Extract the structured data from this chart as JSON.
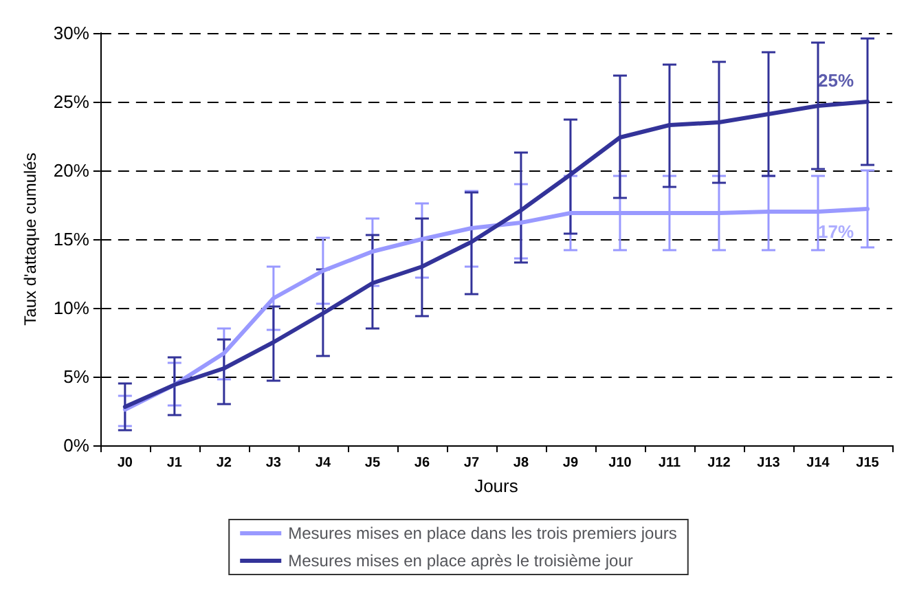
{
  "chart_data": {
    "type": "line",
    "xlabel": "Jours",
    "ylabel": "Taux d'attaque cumulés",
    "categories": [
      "J0",
      "J1",
      "J2",
      "J3",
      "J4",
      "J5",
      "J6",
      "J7",
      "J8",
      "J9",
      "J10",
      "J11",
      "J12",
      "J13",
      "J14",
      "J15"
    ],
    "ylim": [
      0,
      30
    ],
    "yticks": [
      {
        "value": 0,
        "label": "0%"
      },
      {
        "value": 5,
        "label": "5%"
      },
      {
        "value": 10,
        "label": "10%"
      },
      {
        "value": 15,
        "label": "15%"
      },
      {
        "value": 20,
        "label": "20%"
      },
      {
        "value": 25,
        "label": "25%"
      },
      {
        "value": 30,
        "label": "30%"
      }
    ],
    "grid": "y",
    "legend": "bottom",
    "marker": "none",
    "line_style": "solid",
    "series": [
      {
        "name": "Mesures mises en place dans les trois premiers jours",
        "color": "#9999ff",
        "values": [
          2.6,
          4.4,
          6.7,
          10.7,
          12.7,
          14.1,
          15.0,
          15.8,
          16.2,
          16.9,
          16.9,
          16.9,
          16.9,
          17.0,
          17.0,
          17.2
        ],
        "errors": [
          [
            1.4,
            3.6
          ],
          [
            2.9,
            6.0
          ],
          [
            4.8,
            8.5
          ],
          [
            8.4,
            13.0
          ],
          [
            10.3,
            15.1
          ],
          [
            11.6,
            16.5
          ],
          [
            12.2,
            17.6
          ],
          [
            13.0,
            18.5
          ],
          [
            13.6,
            19.0
          ],
          [
            14.2,
            19.6
          ],
          [
            14.2,
            19.6
          ],
          [
            14.2,
            19.6
          ],
          [
            14.2,
            19.6
          ],
          [
            14.2,
            19.6
          ],
          [
            14.2,
            19.6
          ],
          [
            14.4,
            20.0
          ]
        ]
      },
      {
        "name": "Mesures mises en place après le troisième jour",
        "color": "#333399",
        "values": [
          2.8,
          4.4,
          5.6,
          7.5,
          9.6,
          11.8,
          13.0,
          14.8,
          17.1,
          19.7,
          22.4,
          23.3,
          23.5,
          24.1,
          24.7,
          25.0
        ],
        "errors": [
          [
            1.1,
            4.5
          ],
          [
            2.2,
            6.4
          ],
          [
            3.0,
            7.7
          ],
          [
            4.7,
            10.1
          ],
          [
            6.5,
            12.8
          ],
          [
            8.5,
            15.3
          ],
          [
            9.4,
            16.5
          ],
          [
            11.0,
            18.4
          ],
          [
            13.3,
            21.3
          ],
          [
            15.4,
            23.7
          ],
          [
            18.0,
            26.9
          ],
          [
            18.8,
            27.7
          ],
          [
            19.1,
            27.9
          ],
          [
            19.6,
            28.6
          ],
          [
            20.1,
            29.3
          ],
          [
            20.4,
            29.6
          ]
        ]
      }
    ],
    "annotations": [
      {
        "text": "25%",
        "x": "J15",
        "y": 25
      },
      {
        "text": "17%",
        "x": "J15",
        "y": 17
      }
    ]
  }
}
